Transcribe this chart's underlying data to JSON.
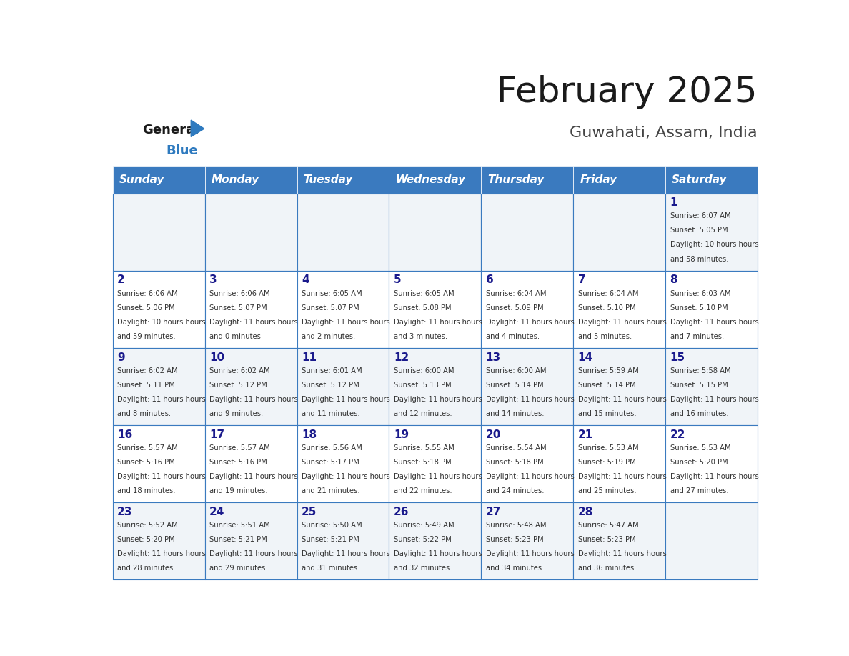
{
  "title": "February 2025",
  "subtitle": "Guwahati, Assam, India",
  "days_of_week": [
    "Sunday",
    "Monday",
    "Tuesday",
    "Wednesday",
    "Thursday",
    "Friday",
    "Saturday"
  ],
  "header_bg": "#3a7abf",
  "header_text": "#ffffff",
  "row_bg_odd": "#f0f4f8",
  "row_bg_even": "#ffffff",
  "cell_border": "#3a7abf",
  "date_color": "#1a1a8c",
  "info_color": "#333333",
  "title_color": "#1a1a1a",
  "subtitle_color": "#444444",
  "logo_general_color": "#1a1a1a",
  "logo_blue_color": "#2e7abf",
  "calendar_data": [
    [
      null,
      null,
      null,
      null,
      null,
      null,
      {
        "day": 1,
        "sunrise": "6:07 AM",
        "sunset": "5:05 PM",
        "daylight": "10 hours and 58 minutes"
      }
    ],
    [
      {
        "day": 2,
        "sunrise": "6:06 AM",
        "sunset": "5:06 PM",
        "daylight": "10 hours and 59 minutes"
      },
      {
        "day": 3,
        "sunrise": "6:06 AM",
        "sunset": "5:07 PM",
        "daylight": "11 hours and 0 minutes"
      },
      {
        "day": 4,
        "sunrise": "6:05 AM",
        "sunset": "5:07 PM",
        "daylight": "11 hours and 2 minutes"
      },
      {
        "day": 5,
        "sunrise": "6:05 AM",
        "sunset": "5:08 PM",
        "daylight": "11 hours and 3 minutes"
      },
      {
        "day": 6,
        "sunrise": "6:04 AM",
        "sunset": "5:09 PM",
        "daylight": "11 hours and 4 minutes"
      },
      {
        "day": 7,
        "sunrise": "6:04 AM",
        "sunset": "5:10 PM",
        "daylight": "11 hours and 5 minutes"
      },
      {
        "day": 8,
        "sunrise": "6:03 AM",
        "sunset": "5:10 PM",
        "daylight": "11 hours and 7 minutes"
      }
    ],
    [
      {
        "day": 9,
        "sunrise": "6:02 AM",
        "sunset": "5:11 PM",
        "daylight": "11 hours and 8 minutes"
      },
      {
        "day": 10,
        "sunrise": "6:02 AM",
        "sunset": "5:12 PM",
        "daylight": "11 hours and 9 minutes"
      },
      {
        "day": 11,
        "sunrise": "6:01 AM",
        "sunset": "5:12 PM",
        "daylight": "11 hours and 11 minutes"
      },
      {
        "day": 12,
        "sunrise": "6:00 AM",
        "sunset": "5:13 PM",
        "daylight": "11 hours and 12 minutes"
      },
      {
        "day": 13,
        "sunrise": "6:00 AM",
        "sunset": "5:14 PM",
        "daylight": "11 hours and 14 minutes"
      },
      {
        "day": 14,
        "sunrise": "5:59 AM",
        "sunset": "5:14 PM",
        "daylight": "11 hours and 15 minutes"
      },
      {
        "day": 15,
        "sunrise": "5:58 AM",
        "sunset": "5:15 PM",
        "daylight": "11 hours and 16 minutes"
      }
    ],
    [
      {
        "day": 16,
        "sunrise": "5:57 AM",
        "sunset": "5:16 PM",
        "daylight": "11 hours and 18 minutes"
      },
      {
        "day": 17,
        "sunrise": "5:57 AM",
        "sunset": "5:16 PM",
        "daylight": "11 hours and 19 minutes"
      },
      {
        "day": 18,
        "sunrise": "5:56 AM",
        "sunset": "5:17 PM",
        "daylight": "11 hours and 21 minutes"
      },
      {
        "day": 19,
        "sunrise": "5:55 AM",
        "sunset": "5:18 PM",
        "daylight": "11 hours and 22 minutes"
      },
      {
        "day": 20,
        "sunrise": "5:54 AM",
        "sunset": "5:18 PM",
        "daylight": "11 hours and 24 minutes"
      },
      {
        "day": 21,
        "sunrise": "5:53 AM",
        "sunset": "5:19 PM",
        "daylight": "11 hours and 25 minutes"
      },
      {
        "day": 22,
        "sunrise": "5:53 AM",
        "sunset": "5:20 PM",
        "daylight": "11 hours and 27 minutes"
      }
    ],
    [
      {
        "day": 23,
        "sunrise": "5:52 AM",
        "sunset": "5:20 PM",
        "daylight": "11 hours and 28 minutes"
      },
      {
        "day": 24,
        "sunrise": "5:51 AM",
        "sunset": "5:21 PM",
        "daylight": "11 hours and 29 minutes"
      },
      {
        "day": 25,
        "sunrise": "5:50 AM",
        "sunset": "5:21 PM",
        "daylight": "11 hours and 31 minutes"
      },
      {
        "day": 26,
        "sunrise": "5:49 AM",
        "sunset": "5:22 PM",
        "daylight": "11 hours and 32 minutes"
      },
      {
        "day": 27,
        "sunrise": "5:48 AM",
        "sunset": "5:23 PM",
        "daylight": "11 hours and 34 minutes"
      },
      {
        "day": 28,
        "sunrise": "5:47 AM",
        "sunset": "5:23 PM",
        "daylight": "11 hours and 36 minutes"
      },
      null
    ]
  ]
}
